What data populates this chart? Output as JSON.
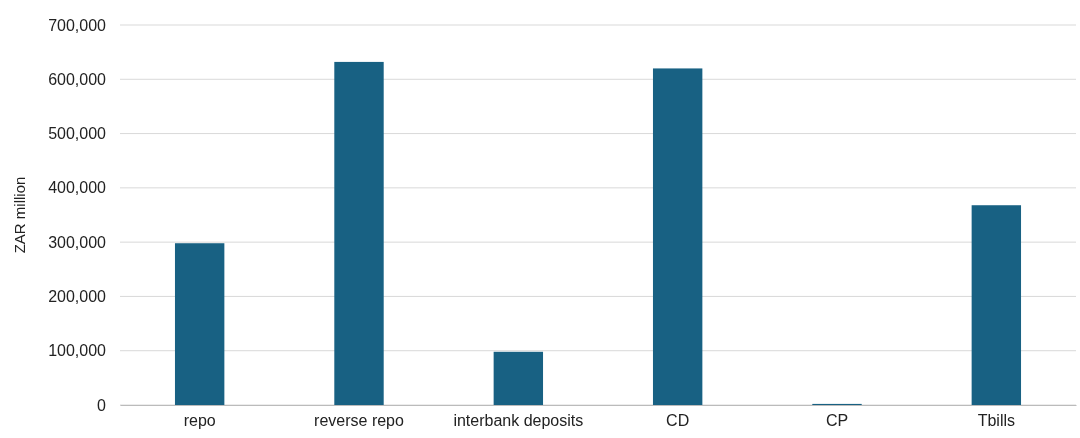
{
  "chart_data": {
    "type": "bar",
    "ylabel": "ZAR million",
    "categories": [
      "repo",
      "reverse repo",
      "interbank deposits",
      "CD",
      "CP",
      "Tbills"
    ],
    "values": [
      298000,
      632000,
      98000,
      620000,
      2000,
      368000
    ],
    "color": "#186183",
    "ylim": [
      0,
      700000
    ],
    "yticks": [
      {
        "value": 0,
        "label": "0"
      },
      {
        "value": 100000,
        "label": "100,000"
      },
      {
        "value": 200000,
        "label": "200,000"
      },
      {
        "value": 300000,
        "label": "300,000"
      },
      {
        "value": 400000,
        "label": "400,000"
      },
      {
        "value": 500000,
        "label": "500,000"
      },
      {
        "value": 600000,
        "label": "600,000"
      },
      {
        "value": 700000,
        "label": "700,000"
      }
    ],
    "grid": "y"
  }
}
